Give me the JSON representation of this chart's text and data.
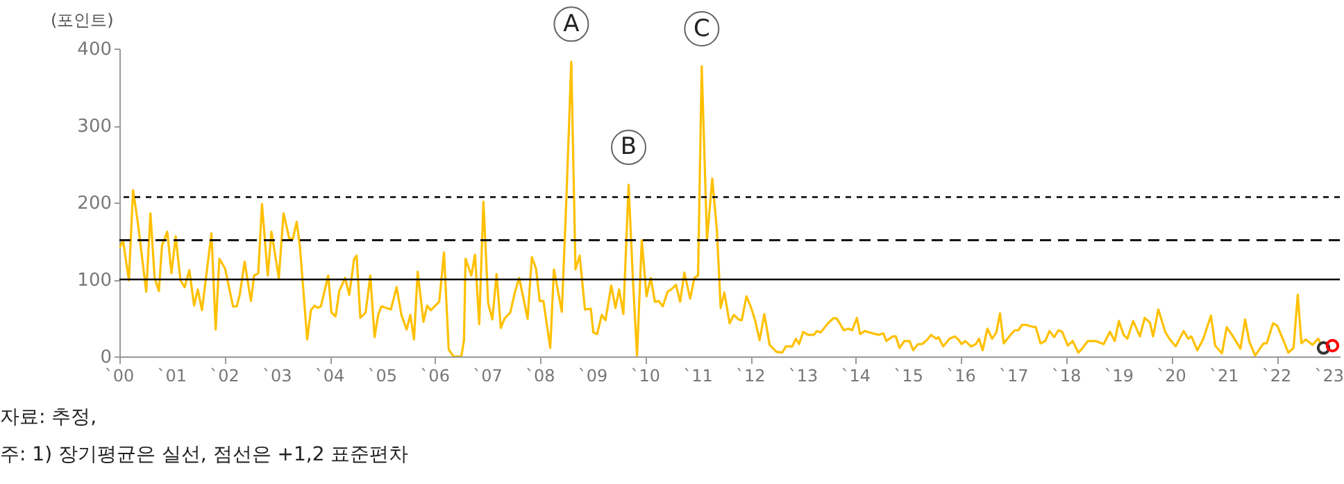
{
  "chart_data": {
    "type": "line",
    "ylabel": "(포인트)",
    "annotations": [
      {
        "text": "A",
        "x": 8.59,
        "y": 383
      },
      {
        "text": "B",
        "x": 9.68,
        "y": 223
      },
      {
        "text": "C",
        "x": 11.07,
        "y": 377
      },
      "자료: 추정,",
      "주: 1) 장기평균은 실선, 점선은 +1,2 표준편차"
    ],
    "xlim": [
      0,
      23.2
    ],
    "xticks": [
      {
        "value": 0,
        "label": "`00"
      },
      {
        "value": 1,
        "label": "`01"
      },
      {
        "value": 2,
        "label": "`02"
      },
      {
        "value": 3,
        "label": "`03"
      },
      {
        "value": 4,
        "label": "`04"
      },
      {
        "value": 5,
        "label": "`05"
      },
      {
        "value": 6,
        "label": "`06"
      },
      {
        "value": 7,
        "label": "`07"
      },
      {
        "value": 8,
        "label": "`08"
      },
      {
        "value": 9,
        "label": "`09"
      },
      {
        "value": 10,
        "label": "`10"
      },
      {
        "value": 11,
        "label": "`11"
      },
      {
        "value": 12,
        "label": "`12"
      },
      {
        "value": 13,
        "label": "`13"
      },
      {
        "value": 14,
        "label": "`14"
      },
      {
        "value": 15,
        "label": "`15"
      },
      {
        "value": 16,
        "label": "`16"
      },
      {
        "value": 17,
        "label": "`17"
      },
      {
        "value": 18,
        "label": "`18"
      },
      {
        "value": 19,
        "label": "`19"
      },
      {
        "value": 20,
        "label": "`20"
      },
      {
        "value": 21,
        "label": "`21"
      },
      {
        "value": 22,
        "label": "`22"
      },
      {
        "value": 23,
        "label": "`23"
      }
    ],
    "ylim": [
      0,
      400
    ],
    "yticks": [
      0,
      100,
      200,
      300,
      400
    ],
    "ref_lines": [
      {
        "axis": "y",
        "value": 100,
        "line_style": "solid",
        "color": "#000000"
      },
      {
        "axis": "y",
        "value": 151,
        "line_style": "dashed",
        "color": "#000000"
      },
      {
        "axis": "y",
        "value": 207,
        "line_style": "dotted",
        "color": "#000000"
      }
    ],
    "series": [
      {
        "color": "#ffc000",
        "x": [
          0.0,
          0.07,
          0.18,
          0.26,
          0.35,
          0.51,
          0.59,
          0.67,
          0.75,
          0.81,
          0.91,
          0.99,
          1.07,
          1.16,
          1.24,
          1.33,
          1.42,
          1.49,
          1.57,
          1.75,
          1.83,
          1.9,
          2.01,
          2.16,
          2.23,
          2.29,
          2.38,
          2.5,
          2.56,
          2.64,
          2.71,
          2.82,
          2.89,
          3.03,
          3.12,
          3.23,
          3.3,
          3.37,
          3.43,
          3.57,
          3.64,
          3.71,
          3.77,
          3.83,
          3.97,
          4.03,
          4.11,
          4.18,
          4.29,
          4.37,
          4.46,
          4.51,
          4.58,
          4.68,
          4.77,
          4.85,
          4.92,
          4.98,
          5.16,
          5.27,
          5.36,
          5.46,
          5.53,
          5.6,
          5.67,
          5.78,
          5.85,
          5.92,
          6.08,
          6.17,
          6.26,
          6.35,
          6.5,
          6.55,
          6.58,
          6.69,
          6.76,
          6.84,
          6.92,
          7.01,
          7.09,
          7.17,
          7.25,
          7.32,
          7.43,
          7.52,
          7.6,
          7.76,
          7.84,
          7.92,
          7.99,
          8.06,
          8.19,
          8.26,
          8.41,
          8.5,
          8.59,
          8.67,
          8.75,
          8.85,
          8.96,
          9.01,
          9.08,
          9.17,
          9.24,
          9.35,
          9.43,
          9.5,
          9.58,
          9.68,
          9.76,
          9.84,
          9.93,
          10.02,
          10.1,
          10.18,
          10.25,
          10.33,
          10.42,
          10.49,
          10.58,
          10.66,
          10.74,
          10.85,
          10.93,
          11.0,
          11.07,
          11.17,
          11.27,
          11.36,
          11.43,
          11.5,
          11.6,
          11.68,
          11.77,
          11.83,
          11.92,
          12.0,
          12.08,
          12.17,
          12.26,
          12.36,
          12.49,
          12.6,
          12.67,
          12.79,
          12.86,
          12.92,
          13.0,
          13.09,
          13.2,
          13.26,
          13.33,
          13.47,
          13.58,
          13.64,
          13.77,
          13.86,
          13.93,
          14.02,
          14.08,
          14.17,
          14.32,
          14.43,
          14.52,
          14.58,
          14.7,
          14.76,
          14.83,
          14.92,
          15.02,
          15.09,
          15.18,
          15.26,
          15.36,
          15.43,
          15.53,
          15.57,
          15.66,
          15.78,
          15.88,
          15.95,
          16.01,
          16.08,
          16.19,
          16.28,
          16.34,
          16.41,
          16.5,
          16.59,
          16.67,
          16.74,
          16.81,
          16.94,
          17.02,
          17.09,
          17.16,
          17.24,
          17.33,
          17.42,
          17.51,
          17.6,
          17.68,
          17.77,
          17.85,
          17.92,
          18.03,
          18.12,
          18.23,
          18.3,
          18.41,
          18.56,
          18.71,
          18.83,
          18.92,
          19.0,
          19.09,
          19.16,
          19.27,
          19.4,
          19.49,
          19.59,
          19.65,
          19.75,
          19.88,
          19.97,
          20.08,
          20.23,
          20.32,
          20.38,
          20.49,
          20.6,
          20.75,
          20.83,
          20.96,
          21.05,
          21.15,
          21.31,
          21.4,
          21.48,
          21.59,
          21.75,
          21.81,
          21.93,
          22.01,
          22.12,
          22.22,
          22.32,
          22.4,
          22.47,
          22.55,
          22.68,
          22.79,
          22.83
        ],
        "values": [
          141,
          150,
          99,
          216,
          174,
          84,
          186,
          102,
          85,
          144,
          162,
          108,
          156,
          99,
          90,
          112,
          66,
          87,
          60,
          160,
          35,
          127,
          114,
          65,
          65,
          81,
          123,
          72,
          105,
          108,
          198,
          105,
          162,
          102,
          186,
          153,
          153,
          175,
          144,
          22,
          60,
          66,
          63,
          65,
          105,
          57,
          52,
          85,
          102,
          80,
          126,
          131,
          50,
          57,
          105,
          25,
          54,
          65,
          61,
          90,
          54,
          35,
          54,
          22,
          110,
          45,
          66,
          60,
          71,
          135,
          9,
          0,
          0,
          21,
          127,
          105,
          132,
          42,
          201,
          69,
          48,
          107,
          37,
          49,
          57,
          84,
          102,
          49,
          129,
          114,
          72,
          72,
          11,
          113,
          58,
          210,
          383,
          113,
          131,
          61,
          62,
          31,
          29,
          54,
          47,
          92,
          63,
          87,
          55,
          223,
          102,
          1,
          151,
          78,
          102,
          71,
          72,
          65,
          84,
          87,
          93,
          71,
          109,
          75,
          102,
          105,
          377,
          151,
          231,
          162,
          63,
          83,
          43,
          54,
          48,
          47,
          78,
          65,
          48,
          21,
          55,
          15,
          6,
          5,
          13,
          13,
          23,
          16,
          32,
          28,
          28,
          33,
          31,
          43,
          50,
          49,
          34,
          36,
          34,
          50,
          29,
          33,
          30,
          28,
          30,
          20,
          26,
          26,
          11,
          20,
          20,
          8,
          16,
          16,
          22,
          28,
          23,
          25,
          13,
          23,
          26,
          22,
          16,
          20,
          13,
          16,
          23,
          8,
          36,
          23,
          31,
          56,
          17,
          28,
          34,
          34,
          41,
          41,
          39,
          38,
          17,
          20,
          33,
          25,
          34,
          32,
          14,
          20,
          5,
          10,
          20,
          20,
          16,
          32,
          20,
          46,
          28,
          23,
          46,
          26,
          50,
          44,
          26,
          61,
          32,
          22,
          13,
          33,
          23,
          26,
          8,
          22,
          53,
          14,
          4,
          38,
          28,
          10,
          48,
          19,
          1,
          17,
          17,
          43,
          40,
          22,
          5,
          11,
          80,
          17,
          22,
          15,
          23,
          17
        ]
      },
      {
        "type": "scatter",
        "marker": "circle",
        "color": "#333333",
        "x": [
          22.89
        ],
        "values": [
          11
        ]
      },
      {
        "type": "scatter",
        "marker": "circle",
        "color": "#ff0000",
        "x": [
          23.06
        ],
        "values": [
          14
        ]
      }
    ]
  }
}
